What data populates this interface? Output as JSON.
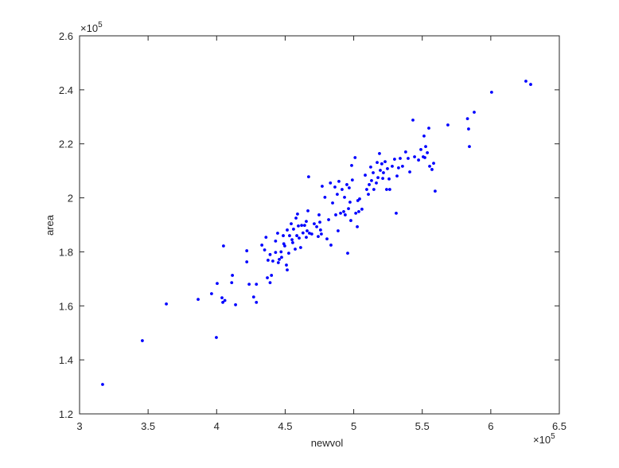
{
  "chart_data": {
    "type": "scatter",
    "x_label": "newvol",
    "y_label": "area",
    "x_exponent": {
      "base": "×10",
      "power": "5"
    },
    "y_exponent": {
      "base": "×10",
      "power": "5"
    },
    "color": "#0000ff",
    "grid": false,
    "xlim": [
      3,
      6.5
    ],
    "ylim": [
      1.2,
      2.6
    ],
    "xticks": [
      3,
      3.5,
      4,
      4.5,
      5,
      5.5,
      6,
      6.5
    ],
    "yticks": [
      1.2,
      1.4,
      1.6,
      1.8,
      2,
      2.2,
      2.4,
      2.6
    ],
    "x": [
      3.168,
      3.458,
      3.633,
      3.865,
      3.963,
      3.998,
      4.004,
      4.039,
      4.045,
      4.05,
      4.06,
      4.11,
      4.115,
      4.138,
      4.22,
      4.22,
      4.237,
      4.27,
      4.29,
      4.29,
      4.33,
      4.35,
      4.36,
      4.37,
      4.375,
      4.39,
      4.39,
      4.4,
      4.41,
      4.43,
      4.43,
      4.445,
      4.45,
      4.457,
      4.47,
      4.474,
      4.486,
      4.49,
      4.497,
      4.509,
      4.515,
      4.515,
      4.526,
      4.532,
      4.544,
      4.55,
      4.555,
      4.561,
      4.573,
      4.579,
      4.585,
      4.59,
      4.596,
      4.602,
      4.613,
      4.62,
      4.63,
      4.642,
      4.654,
      4.654,
      4.66,
      4.666,
      4.671,
      4.677,
      4.694,
      4.712,
      4.73,
      4.741,
      4.747,
      4.753,
      4.758,
      4.764,
      4.77,
      4.79,
      4.805,
      4.817,
      4.83,
      4.834,
      4.846,
      4.863,
      4.869,
      4.88,
      4.886,
      4.892,
      4.904,
      4.915,
      4.927,
      4.933,
      4.938,
      4.95,
      4.956,
      4.962,
      4.967,
      4.973,
      4.979,
      4.985,
      4.99,
      5.01,
      5.015,
      5.026,
      5.03,
      5.037,
      5.043,
      5.06,
      5.084,
      5.095,
      5.107,
      5.113,
      5.124,
      5.13,
      5.142,
      5.147,
      5.165,
      5.171,
      5.177,
      5.188,
      5.194,
      5.205,
      5.212,
      5.217,
      5.229,
      5.24,
      5.246,
      5.258,
      5.263,
      5.281,
      5.298,
      5.31,
      5.316,
      5.327,
      5.339,
      5.356,
      5.379,
      5.397,
      5.409,
      5.432,
      5.444,
      5.473,
      5.49,
      5.507,
      5.513,
      5.519,
      5.525,
      5.537,
      5.548,
      5.554,
      5.571,
      5.583,
      5.594,
      5.687,
      5.83,
      5.838,
      5.844,
      5.879,
      6.006,
      6.256,
      6.291
    ],
    "values": [
      1.309,
      1.471,
      1.607,
      1.624,
      1.645,
      1.483,
      1.683,
      1.63,
      1.613,
      1.822,
      1.62,
      1.686,
      1.713,
      1.604,
      1.804,
      1.763,
      1.68,
      1.633,
      1.68,
      1.613,
      1.825,
      1.807,
      1.854,
      1.704,
      1.769,
      1.686,
      1.79,
      1.713,
      1.766,
      1.798,
      1.84,
      1.869,
      1.76,
      1.772,
      1.8,
      1.78,
      1.86,
      1.83,
      1.822,
      1.751,
      1.733,
      1.881,
      1.795,
      1.86,
      1.904,
      1.845,
      1.834,
      1.884,
      1.81,
      1.925,
      1.86,
      1.94,
      1.896,
      1.851,
      1.816,
      1.898,
      1.87,
      1.898,
      1.854,
      1.913,
      1.878,
      1.952,
      2.078,
      1.869,
      1.866,
      1.904,
      1.893,
      1.857,
      1.937,
      1.91,
      1.881,
      1.866,
      2.043,
      2.002,
      1.848,
      1.919,
      2.055,
      1.825,
      1.981,
      2.04,
      1.937,
      2.013,
      1.878,
      2.061,
      1.943,
      2.031,
      1.949,
      2.002,
      1.937,
      2.049,
      1.795,
      1.96,
      2.037,
      1.984,
      1.916,
      2.12,
      2.066,
      2.149,
      1.943,
      1.893,
      1.99,
      1.949,
      1.996,
      1.958,
      2.084,
      2.031,
      2.013,
      2.049,
      2.114,
      2.064,
      2.093,
      2.031,
      2.055,
      2.131,
      2.075,
      2.164,
      2.102,
      2.126,
      2.072,
      2.093,
      2.134,
      2.031,
      2.108,
      2.07,
      2.031,
      2.117,
      2.143,
      1.943,
      2.081,
      2.111,
      2.146,
      2.117,
      2.17,
      2.146,
      2.096,
      2.288,
      2.152,
      2.14,
      2.179,
      2.152,
      2.229,
      2.149,
      2.19,
      2.167,
      2.258,
      2.117,
      2.105,
      2.128,
      2.025,
      2.27,
      2.293,
      2.255,
      2.19,
      2.317,
      2.391,
      2.432,
      2.42
    ]
  }
}
